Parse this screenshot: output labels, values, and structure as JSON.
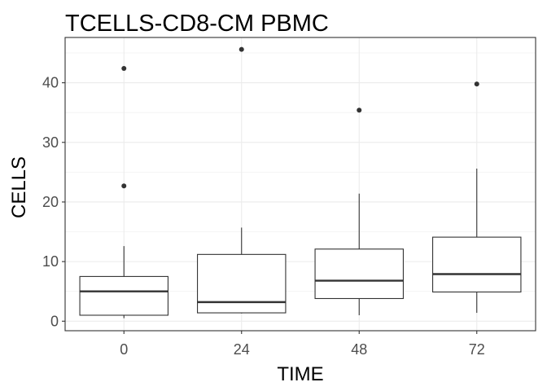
{
  "chart_data": {
    "type": "boxplot",
    "title": "TCELLS-CD8-CM PBMC",
    "xlabel": "TIME",
    "ylabel": "CELLS",
    "ylim": [
      -1.6,
      47.6
    ],
    "yticks": [
      0,
      10,
      20,
      30,
      40
    ],
    "categories": [
      "0",
      "24",
      "48",
      "72"
    ],
    "boxes": [
      {
        "category": "0",
        "min": 0.5,
        "q1": 1.0,
        "median": 5.0,
        "q3": 7.5,
        "max": 12.6,
        "outliers": [
          22.7,
          42.4
        ]
      },
      {
        "category": "24",
        "min": 1.3,
        "q1": 1.4,
        "median": 3.2,
        "q3": 11.2,
        "max": 15.7,
        "outliers": [
          45.6
        ]
      },
      {
        "category": "48",
        "min": 1.0,
        "q1": 3.8,
        "median": 6.8,
        "q3": 12.1,
        "max": 21.4,
        "outliers": [
          35.4
        ]
      },
      {
        "category": "72",
        "min": 1.4,
        "q1": 4.9,
        "median": 7.9,
        "q3": 14.1,
        "max": 25.6,
        "outliers": [
          39.8
        ]
      }
    ],
    "grid": true,
    "theme": "bw"
  }
}
